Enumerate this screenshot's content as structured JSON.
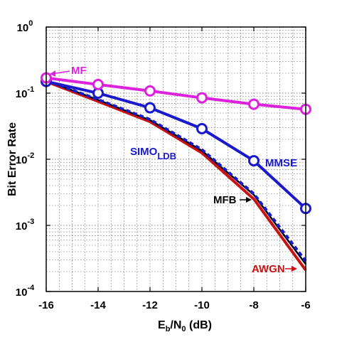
{
  "chart_data": {
    "type": "line",
    "xlabel": "E_b/N_0 (dB)",
    "xlabel_parts": {
      "e": "E",
      "b_sub": "b",
      "slash": "/N",
      "zero_sub": "0",
      "unit": " (dB)"
    },
    "ylabel": "Bit Error Rate",
    "xlim": [
      -16,
      -6
    ],
    "ylim": [
      0.0001,
      1
    ],
    "yscale": "log",
    "grid": true,
    "x_ticks": [
      "-16",
      "-14",
      "-12",
      "-10",
      "-8",
      "-6"
    ],
    "y_ticks": [
      {
        "base": "10",
        "exp": "0"
      },
      {
        "base": "10",
        "exp": "-1"
      },
      {
        "base": "10",
        "exp": "-2"
      },
      {
        "base": "10",
        "exp": "-3"
      },
      {
        "base": "10",
        "exp": "-4"
      }
    ],
    "x": [
      -16,
      -14,
      -12,
      -10,
      -8,
      -6
    ],
    "series": [
      {
        "name": "MF",
        "color": "#dd22dd",
        "marker": "circle",
        "style": "solid",
        "values": [
          0.17,
          0.135,
          0.108,
          0.085,
          0.068,
          0.057
        ]
      },
      {
        "name": "MMSE",
        "color": "#1a1acc",
        "marker": "circle",
        "style": "solid",
        "values": [
          0.15,
          0.1,
          0.06,
          0.029,
          0.0095,
          0.0018
        ]
      },
      {
        "name": "AWGN",
        "color": "#cc1111",
        "marker": "none",
        "style": "solid",
        "values": [
          0.15,
          0.075,
          0.037,
          0.0125,
          0.0025,
          0.00021
        ]
      },
      {
        "name": "MFB",
        "color": "#000000",
        "marker": "none",
        "style": "solid",
        "values": [
          0.155,
          0.079,
          0.039,
          0.0135,
          0.0029,
          0.00026
        ]
      },
      {
        "name": "SIMO_LDB",
        "color": "#1a1acc",
        "marker": "none",
        "style": "dashed",
        "values": [
          0.155,
          0.08,
          0.04,
          0.014,
          0.003,
          0.00029
        ]
      }
    ],
    "annotations": [
      {
        "label": "MF",
        "color": "#dd22dd",
        "arrow": true
      },
      {
        "label": "MMSE",
        "color": "#1a1acc",
        "arrow": false
      },
      {
        "label": "SIMO",
        "sub": "LDB",
        "color": "#1a1acc",
        "arrow": false
      },
      {
        "label": "MFB",
        "color": "#000000",
        "arrow": true
      },
      {
        "label": "AWGN",
        "color": "#cc1111",
        "arrow": true
      }
    ]
  }
}
